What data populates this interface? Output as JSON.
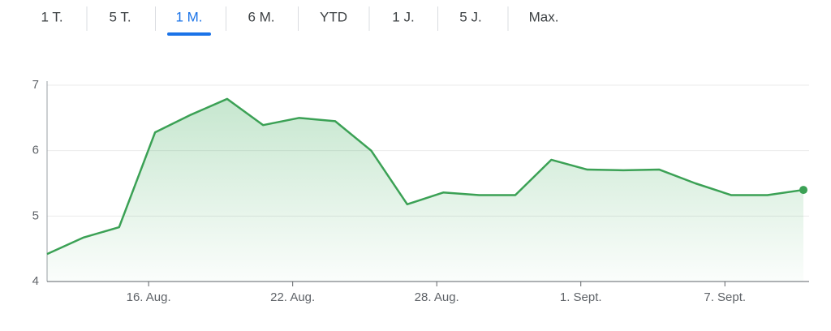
{
  "tabs": [
    "1 T.",
    "5 T.",
    "1 M.",
    "6 M.",
    "YTD",
    "1 J.",
    "5 J.",
    "Max."
  ],
  "selected_tab": 2,
  "chart_data": {
    "type": "area",
    "categories": [
      null,
      null,
      null,
      "16. Aug.",
      null,
      null,
      null,
      "22. Aug.",
      null,
      null,
      null,
      "28. Aug.",
      null,
      null,
      null,
      "1. Sept.",
      null,
      null,
      null,
      "7. Sept.",
      null,
      null
    ],
    "values": [
      4.42,
      4.67,
      4.83,
      6.28,
      6.55,
      6.79,
      6.39,
      6.5,
      6.45,
      6.0,
      5.18,
      5.36,
      5.32,
      5.32,
      5.86,
      5.71,
      5.7,
      5.71,
      5.5,
      5.32,
      5.32,
      5.4
    ],
    "color": "#3ba155",
    "ylim": [
      4,
      7
    ],
    "yticks": [
      4,
      5,
      6,
      7
    ],
    "grid": true
  }
}
